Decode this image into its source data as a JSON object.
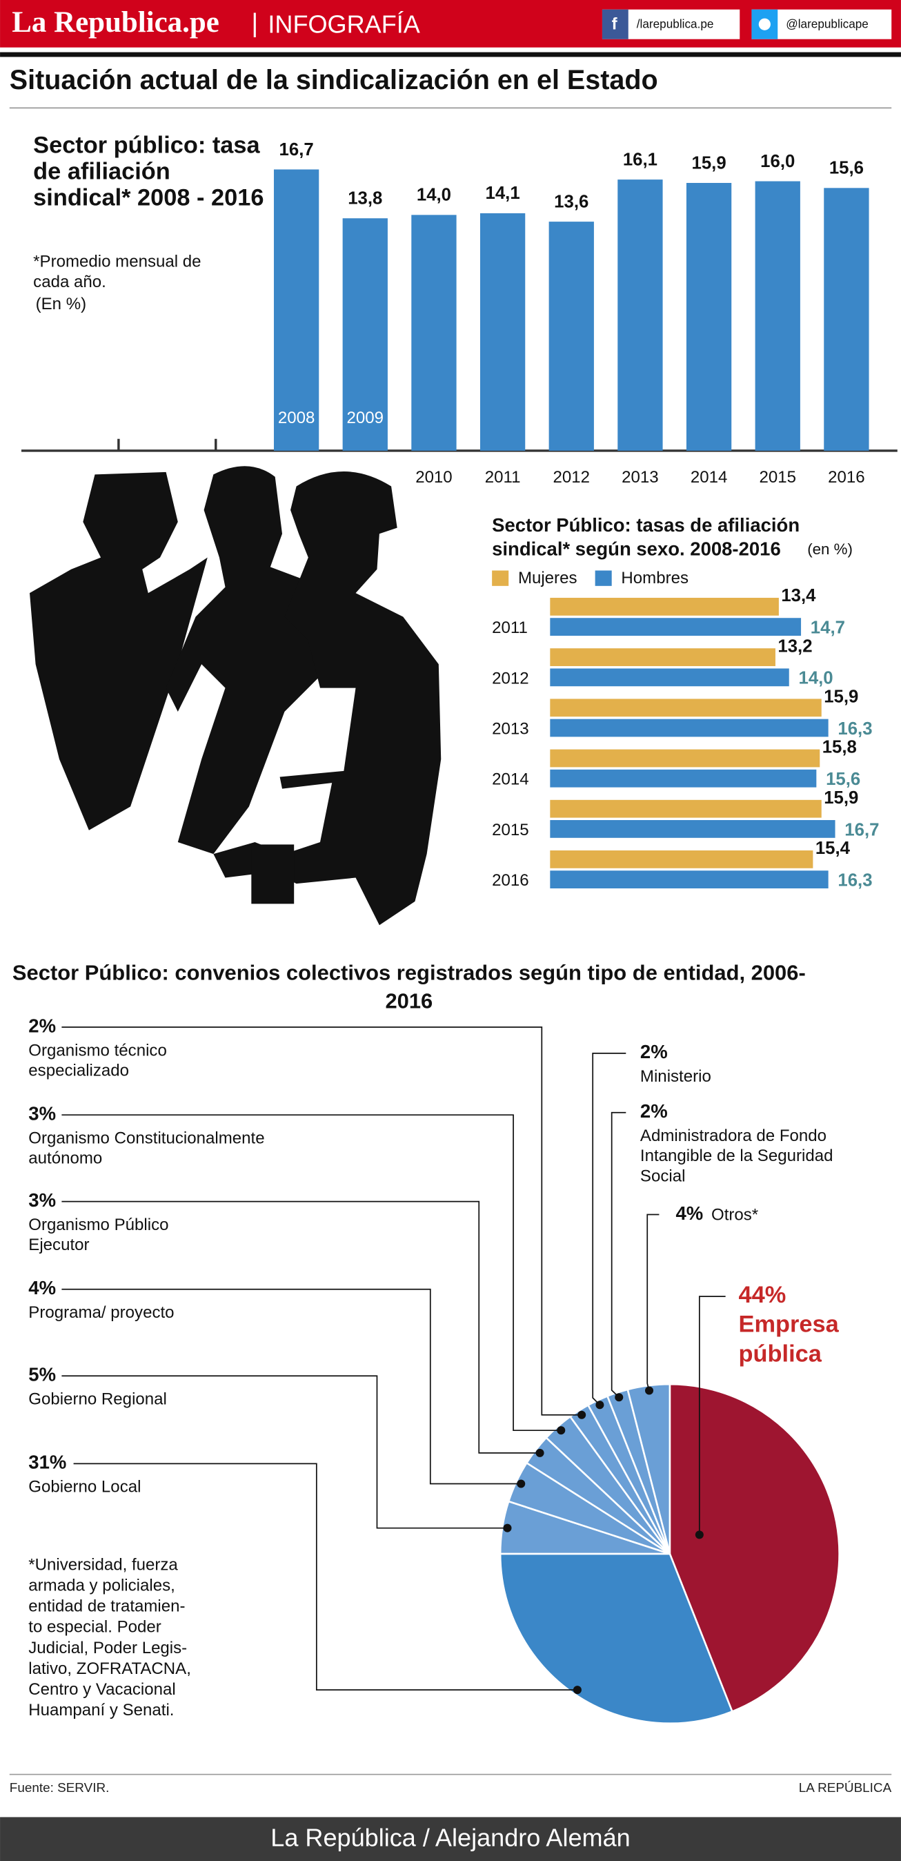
{
  "header": {
    "brand": "La Republica.pe",
    "section": "INFOGRAFÍA",
    "facebook": "/larepublica.pe",
    "twitter": "@larepublicape",
    "title": "Situación actual de la sindicalización en el Estado"
  },
  "chart_data": [
    {
      "type": "bar",
      "title": "Sector público: tasa de afiliación sindical* 2008 - 2016",
      "subtitle": "*Promedio mensual de cada año.",
      "unit": "(En %)",
      "categories": [
        "2008",
        "2009",
        "2010",
        "2011",
        "2012",
        "2013",
        "2014",
        "2015",
        "2016"
      ],
      "values": [
        16.7,
        13.8,
        14.0,
        14.1,
        13.6,
        16.1,
        15.9,
        16.0,
        15.6
      ],
      "value_labels": [
        "16,7",
        "13,8",
        "14,0",
        "14,1",
        "13,6",
        "16,1",
        "15,9",
        "16,0",
        "15,6"
      ],
      "color": "#3b87c8"
    },
    {
      "type": "hbar",
      "title": "Sector Público: tasas de afiliación sindical* según sexo. 2008-2016",
      "unit": "(en %)",
      "categories": [
        "2011",
        "2012",
        "2013",
        "2014",
        "2015",
        "2016"
      ],
      "series": [
        {
          "name": "Mujeres",
          "color": "#e3b04b",
          "values": [
            13.4,
            13.2,
            15.9,
            15.8,
            15.9,
            15.4
          ],
          "value_labels": [
            "13,4",
            "13,2",
            "15,9",
            "15,8",
            "15,9",
            "15,4"
          ]
        },
        {
          "name": "Hombres",
          "color": "#3b87c8",
          "values": [
            14.7,
            14.0,
            16.3,
            15.6,
            16.7,
            16.3
          ],
          "value_labels": [
            "14,7",
            "14,0",
            "16,3",
            "15,6",
            "16,7",
            "16,3"
          ]
        }
      ]
    },
    {
      "type": "pie",
      "title": "Sector Público: convenios colectivos registrados según tipo de entidad, 2006-2016",
      "categories": [
        "Empresa pública",
        "Gobierno Local",
        "Gobierno Regional",
        "Programa/ proyecto",
        "Organismo Público Ejecutor",
        "Organismo Constitucionalmente autónomo",
        "Organismo técnico especializado",
        "Ministerio",
        "Administradora de Fondo Intangible de la Seguridad Social",
        "Otros*"
      ],
      "values": [
        44,
        31,
        5,
        4,
        3,
        3,
        2,
        2,
        2,
        4
      ],
      "value_labels": [
        "44%",
        "31%",
        "5%",
        "4%",
        "3%",
        "3%",
        "2%",
        "2%",
        "2%",
        "4%"
      ],
      "colors": [
        "#9e1530",
        "#3b87c8",
        "#6a9fd6",
        "#6a9fd6",
        "#6a9fd6",
        "#6a9fd6",
        "#6a9fd6",
        "#6a9fd6",
        "#6a9fd6",
        "#6a9fd6"
      ],
      "note": [
        "*Universidad, fuerza",
        "armada y policiales,",
        "entidad de tratamien-",
        "to especial. Poder",
        "Judicial, Poder Legis-",
        "lativo, ZOFRATACNA,",
        "Centro y Vacacional",
        "Huampaní y Senati."
      ]
    }
  ],
  "footer": {
    "source": "Fuente: SERVIR.",
    "brand": "LA REPÚBLICA",
    "credit": "La República / Alejandro Alemán"
  }
}
